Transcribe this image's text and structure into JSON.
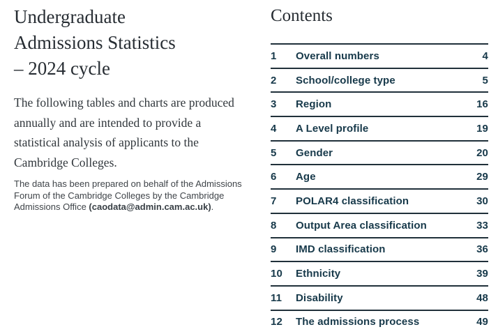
{
  "left": {
    "title_lines": [
      "Undergraduate",
      "Admissions Statistics",
      "– 2024 cycle"
    ],
    "intro": "The following tables and charts are produced annually and are intended to provide a statistical analysis of applicants to the Cambridge Colleges.",
    "note_prefix": "The data has been prepared on behalf of the Admissions Forum of the Cambridge Colleges by the Cambridge Admissions Office ",
    "note_bold": "(caodata@admin.cam.ac.uk)",
    "note_suffix": "."
  },
  "contents": {
    "heading": "Contents",
    "items": [
      {
        "num": "1",
        "label": "Overall numbers",
        "page": "4"
      },
      {
        "num": "2",
        "label": "School/college type",
        "page": "5"
      },
      {
        "num": "3",
        "label": "Region",
        "page": "16"
      },
      {
        "num": "4",
        "label": "A Level profile",
        "page": "19"
      },
      {
        "num": "5",
        "label": "Gender",
        "page": "20"
      },
      {
        "num": "6",
        "label": "Age",
        "page": "29"
      },
      {
        "num": "7",
        "label": "POLAR4 classification",
        "page": "30"
      },
      {
        "num": "8",
        "label": "Output Area classification",
        "page": "33"
      },
      {
        "num": "9",
        "label": "IMD classification",
        "page": "36"
      },
      {
        "num": "10",
        "label": "Ethnicity",
        "page": "39"
      },
      {
        "num": "11",
        "label": "Disability",
        "page": "48"
      },
      {
        "num": "12",
        "label": "The admissions process",
        "page": "49"
      }
    ]
  },
  "colors": {
    "toc_text": "#17394a",
    "rule": "#20303a",
    "heading_text": "#272d33",
    "body_text": "#31373c",
    "note_text": "#3f4449",
    "background": "#ffffff"
  }
}
